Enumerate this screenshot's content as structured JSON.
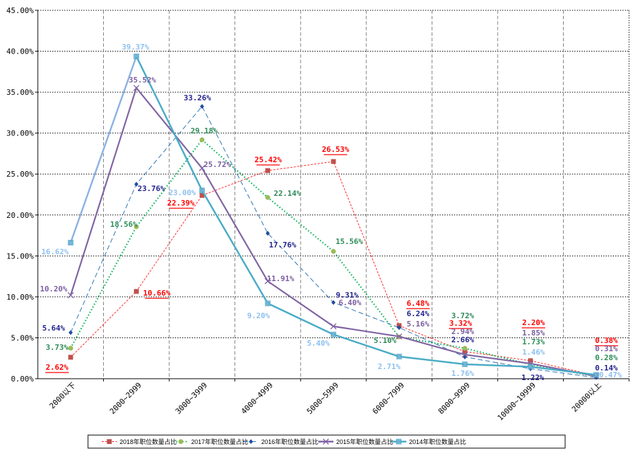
{
  "chart_data": {
    "type": "line",
    "title": "",
    "xlabel": "",
    "ylabel": "",
    "ylim": [
      0,
      45
    ],
    "yticks": [
      "0.00%",
      "5.00%",
      "10.00%",
      "15.00%",
      "20.00%",
      "25.00%",
      "30.00%",
      "35.00%",
      "40.00%",
      "45.00%"
    ],
    "grid": true,
    "legend_position": "bottom",
    "categories": [
      "2000以下",
      "2000~2999",
      "3000~3999",
      "4000~4999",
      "5000~5999",
      "6000~7999",
      "8000~9999",
      "10000~19999",
      "20000以上"
    ],
    "series": [
      {
        "name": "2018年职位数量占比",
        "values": [
          2.62,
          10.66,
          22.39,
          25.42,
          26.53,
          6.48,
          3.32,
          2.2,
          0.38
        ],
        "line_color": "#ff2a2a",
        "marker_color": "#c0504d",
        "label_color": "#ff0000",
        "style": "dash-short",
        "marker": "square"
      },
      {
        "name": "2017年职位数量占比",
        "values": [
          3.73,
          18.56,
          29.18,
          22.14,
          15.56,
          5.1,
          3.72,
          1.73,
          0.28
        ],
        "line_color": "#00b050",
        "marker_color": "#9bbb59",
        "label_color": "#2e8b57",
        "style": "dot",
        "marker": "circle"
      },
      {
        "name": "2016年职位数量占比",
        "values": [
          5.64,
          23.76,
          33.26,
          17.76,
          9.31,
          6.24,
          2.66,
          1.22,
          0.14
        ],
        "line_color": "#2e75b6",
        "marker_color": "#1f4e9e",
        "label_color": "#23238e",
        "style": "dash-long",
        "marker": "diamond"
      },
      {
        "name": "2015年职位数量占比",
        "values": [
          10.2,
          35.52,
          25.72,
          11.91,
          6.4,
          5.16,
          2.94,
          1.85,
          0.31
        ],
        "line_color": "#8064a2",
        "marker_color": "#8064a2",
        "label_color": "#7a5ea0",
        "style": "solid",
        "marker": "x"
      },
      {
        "name": "2014年职位数量占比",
        "values": [
          16.62,
          39.37,
          23.0,
          9.2,
          5.4,
          2.71,
          1.76,
          1.46,
          0.47
        ],
        "line_color": "#4bacc6",
        "marker_color": "#4bacc6",
        "label_color": "#8ec1f0",
        "style": "solid",
        "marker": "square-x"
      }
    ]
  }
}
